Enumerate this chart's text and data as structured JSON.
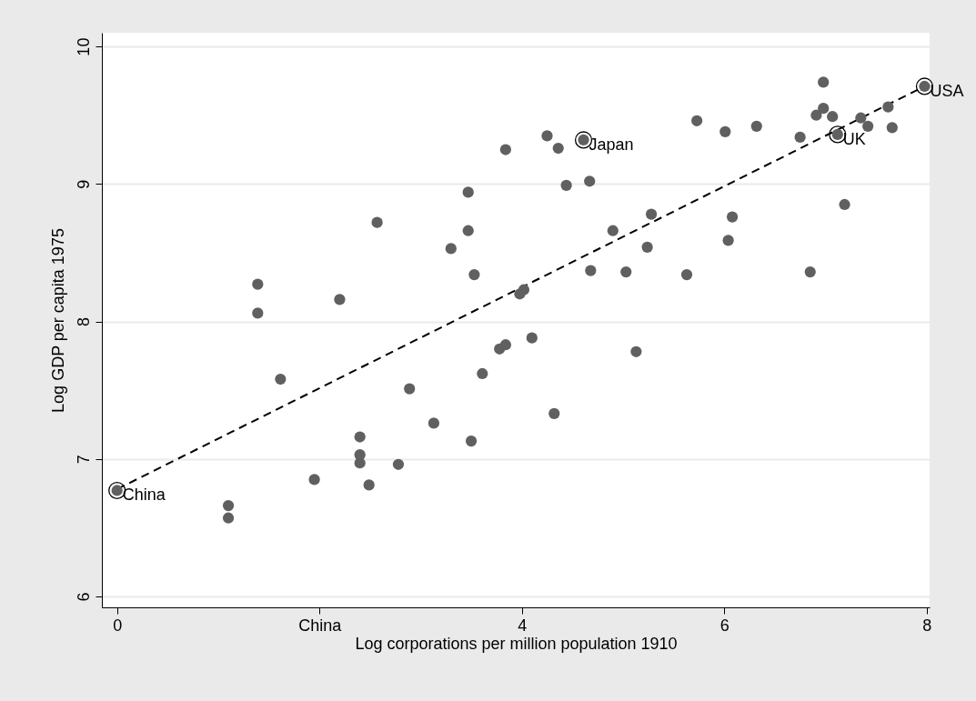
{
  "chart_data": {
    "type": "scatter",
    "xlabel": "Log corporations per million population 1910",
    "ylabel": "Log GDP per capita 1975",
    "xlim": [
      -0.15,
      8.03
    ],
    "ylim": [
      5.92,
      10.1
    ],
    "xticks": [
      0,
      {
        "value": 2,
        "label": "China"
      },
      4,
      6,
      8
    ],
    "yticks": [
      6,
      7,
      8,
      9,
      10
    ],
    "grid": "y",
    "marker": "circle",
    "series": [
      {
        "color": "#606060",
        "x": [
          1.1,
          1.1,
          1.39,
          1.39,
          1.615,
          1.95,
          2.2,
          2.4,
          2.4,
          2.4,
          2.49,
          2.57,
          2.78,
          2.89,
          3.13,
          3.3,
          3.47,
          3.47,
          3.5,
          3.53,
          3.61,
          3.78,
          3.84,
          3.84,
          3.98,
          4.02,
          4.1,
          4.25,
          4.32,
          4.36,
          4.44,
          4.67,
          4.68,
          4.9,
          5.03,
          5.13,
          5.24,
          5.28,
          5.63,
          5.73,
          6.01,
          6.04,
          6.08,
          6.32,
          6.75,
          6.85,
          6.91,
          6.98,
          6.98,
          7.07,
          7.19,
          7.35,
          7.42,
          7.62,
          7.66
        ],
        "values": [
          6.66,
          6.57,
          8.27,
          8.06,
          7.58,
          6.85,
          8.16,
          7.16,
          7.03,
          6.97,
          6.81,
          8.72,
          6.96,
          7.51,
          7.26,
          8.53,
          8.94,
          8.66,
          7.13,
          8.34,
          7.62,
          7.8,
          7.83,
          9.25,
          8.2,
          8.23,
          7.88,
          9.35,
          7.33,
          9.26,
          8.99,
          9.02,
          8.37,
          8.66,
          8.36,
          7.78,
          8.54,
          8.78,
          8.34,
          9.46,
          9.38,
          8.59,
          8.76,
          9.42,
          9.34,
          8.36,
          9.5,
          9.74,
          9.55,
          9.49,
          8.85,
          9.48,
          9.42,
          9.56,
          9.41
        ]
      },
      {
        "color": "#000000",
        "x": [
          0,
          4.61,
          7.12,
          7.98
        ],
        "values": [
          6.77,
          9.32,
          9.36,
          9.71
        ]
      },
      {
        "type": "line",
        "color": "#000000",
        "line_style": "dashed",
        "x": [
          0,
          7.98
        ],
        "values": [
          6.78,
          9.71
        ]
      }
    ],
    "annotations": [
      {
        "text": "China",
        "x": 0,
        "y": 6.77
      },
      {
        "text": "Japan",
        "x": 4.61,
        "y": 9.32
      },
      {
        "text": "UK",
        "x": 7.12,
        "y": 9.36
      },
      {
        "text": "USA",
        "x": 7.98,
        "y": 9.71
      }
    ]
  }
}
